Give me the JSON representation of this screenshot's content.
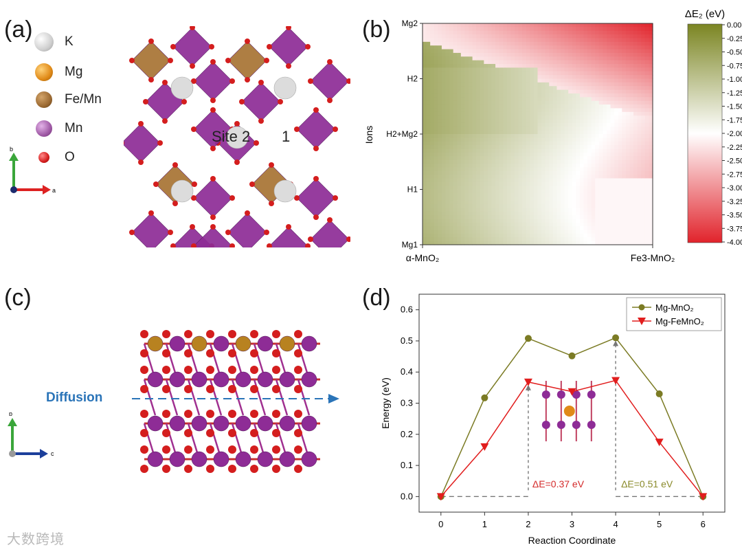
{
  "panels": {
    "a": {
      "label": "(a)",
      "legend": [
        {
          "name": "K",
          "color": "#d4d4d4"
        },
        {
          "name": "Mg",
          "color": "#e08a18"
        },
        {
          "name": "Fe/Mn",
          "color": "#9c6a32"
        },
        {
          "name": "Mn",
          "color": "#a05aa6"
        },
        {
          "name": "O",
          "color": "#d41e1e"
        }
      ],
      "axes": {
        "up": "b",
        "right": "a"
      },
      "site2_label": "Site 2",
      "site1_label": "1"
    },
    "b": {
      "label": "(b)",
      "ylabel": "Ions",
      "yticks": [
        "Mg2",
        "H2",
        "H2+Mg2",
        "H1",
        "Mg1"
      ],
      "xticks": [
        "α-MnO₂",
        "Fe3-MnO₂"
      ],
      "colorbar_title": "ΔE₂ (eV)",
      "colorbar_ticks": [
        "0.00",
        "-0.250",
        "-0.500",
        "-0.750",
        "-1.00",
        "-1.25",
        "-1.50",
        "-1.75",
        "-2.00",
        "-2.25",
        "-2.50",
        "-2.75",
        "-3.00",
        "-3.25",
        "-3.50",
        "-3.75",
        "-4.00"
      ],
      "colors": {
        "high": "#7b8522",
        "mid": "#ffffff",
        "low": "#e1232b"
      }
    },
    "c": {
      "label": "(c)",
      "diffusion_label": "Diffusion",
      "axes": {
        "up": "b",
        "right": "c"
      }
    },
    "d": {
      "label": "(d)",
      "annotation_037": "ΔE=0.37 eV",
      "annotation_051": "ΔE=0.51 eV"
    }
  },
  "chart_data": {
    "type": "line",
    "xlabel": "Reaction Coordinate",
    "ylabel": "Energy (eV)",
    "x": [
      0,
      1,
      2,
      3,
      4,
      5,
      6
    ],
    "xlim": [
      -0.5,
      6.5
    ],
    "ylim": [
      -0.05,
      0.65
    ],
    "yticks": [
      0.0,
      0.1,
      0.2,
      0.3,
      0.4,
      0.5,
      0.6
    ],
    "series": [
      {
        "name": "Mg-MnO₂",
        "color": "#7b7b24",
        "marker": "circle",
        "values": [
          0.0,
          0.317,
          0.508,
          0.452,
          0.51,
          0.33,
          0.0
        ]
      },
      {
        "name": "Mg-FeMnO₂",
        "color": "#e11d1d",
        "marker": "triangle-down",
        "values": [
          0.0,
          0.16,
          0.368,
          0.337,
          0.373,
          0.175,
          0.0
        ]
      }
    ]
  },
  "watermark": "大数跨境"
}
